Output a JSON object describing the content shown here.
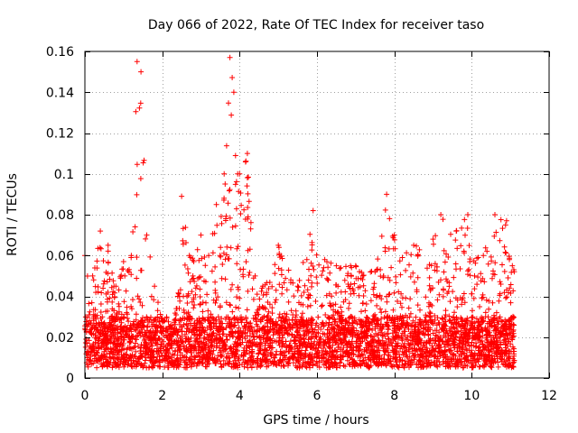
{
  "chart_data": {
    "type": "scatter",
    "title": "Day 066 of 2022, Rate Of TEC Index for receiver taso",
    "xlabel": "GPS time / hours",
    "ylabel": "ROTI / TECUs",
    "xlim": [
      0,
      12
    ],
    "ylim": [
      0,
      0.16
    ],
    "xticks": [
      0,
      2,
      4,
      6,
      8,
      10,
      12
    ],
    "xtick_labels": [
      "0",
      "2",
      "4",
      "6",
      "8",
      "10",
      "12"
    ],
    "yticks": [
      0,
      0.02,
      0.04,
      0.06,
      0.08,
      0.1,
      0.12,
      0.14,
      0.16
    ],
    "ytick_labels": [
      "0",
      "0.02",
      "0.04",
      "0.06",
      "0.08",
      "0.1",
      "0.12",
      "0.14",
      "0.16"
    ],
    "grid": true,
    "marker": "+",
    "marker_color": "#ff0000",
    "time_range_hours": [
      0,
      11.1
    ],
    "series": [
      {
        "name": "ROTI",
        "envelope_note": "approximate upper envelope of dense + markers (hours, TECU)",
        "envelope": [
          [
            0.0,
            0.06
          ],
          [
            0.2,
            0.05
          ],
          [
            0.4,
            0.072
          ],
          [
            0.6,
            0.065
          ],
          [
            0.8,
            0.045
          ],
          [
            1.0,
            0.057
          ],
          [
            1.2,
            0.06
          ],
          [
            1.35,
            0.155
          ],
          [
            1.45,
            0.15
          ],
          [
            1.6,
            0.07
          ],
          [
            1.8,
            0.045
          ],
          [
            2.0,
            0.028
          ],
          [
            2.2,
            0.025
          ],
          [
            2.4,
            0.04
          ],
          [
            2.5,
            0.089
          ],
          [
            2.7,
            0.06
          ],
          [
            3.0,
            0.07
          ],
          [
            3.2,
            0.06
          ],
          [
            3.4,
            0.085
          ],
          [
            3.6,
            0.1
          ],
          [
            3.75,
            0.157
          ],
          [
            3.85,
            0.14
          ],
          [
            4.0,
            0.1
          ],
          [
            4.2,
            0.11
          ],
          [
            4.4,
            0.05
          ],
          [
            4.6,
            0.045
          ],
          [
            5.0,
            0.065
          ],
          [
            5.5,
            0.045
          ],
          [
            5.9,
            0.082
          ],
          [
            6.2,
            0.058
          ],
          [
            6.5,
            0.055
          ],
          [
            7.0,
            0.055
          ],
          [
            7.5,
            0.052
          ],
          [
            7.8,
            0.09
          ],
          [
            8.0,
            0.07
          ],
          [
            8.5,
            0.065
          ],
          [
            9.0,
            0.068
          ],
          [
            9.2,
            0.08
          ],
          [
            9.6,
            0.072
          ],
          [
            9.9,
            0.08
          ],
          [
            10.3,
            0.06
          ],
          [
            10.6,
            0.08
          ],
          [
            10.9,
            0.077
          ],
          [
            11.05,
            0.055
          ]
        ],
        "baseline_range": [
          0.005,
          0.03
        ]
      }
    ]
  }
}
